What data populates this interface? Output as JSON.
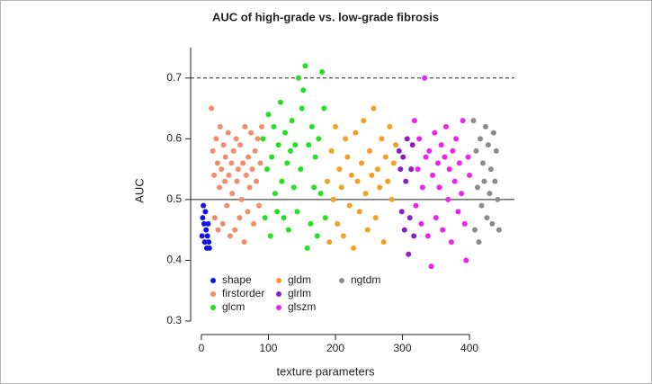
{
  "chart_data": {
    "type": "scatter",
    "title": "AUC of high-grade vs. low-grade fibrosis",
    "xlabel": "texture parameters",
    "ylabel": "AUC",
    "xlim": [
      -16,
      467
    ],
    "ylim": [
      0.3,
      0.75
    ],
    "xticks": [
      0,
      100,
      200,
      300,
      400
    ],
    "yticks": [
      0.3,
      0.4,
      0.5,
      0.6,
      0.7
    ],
    "reference_lines": [
      {
        "value": 0.5,
        "style": "solid"
      },
      {
        "value": 0.7,
        "style": "dashed"
      }
    ],
    "legend": "bottom-left",
    "series": [
      {
        "name": "shape",
        "color": "#1414e6",
        "x": [
          1,
          2,
          3,
          4,
          5,
          6,
          7,
          8,
          9,
          10,
          11,
          12
        ],
        "values": [
          0.44,
          0.47,
          0.49,
          0.46,
          0.43,
          0.48,
          0.45,
          0.42,
          0.44,
          0.46,
          0.43,
          0.42
        ]
      },
      {
        "name": "firstorder",
        "color": "#f28c6a",
        "x": [
          15,
          17,
          19,
          20,
          22,
          24,
          25,
          27,
          28,
          30,
          32,
          33,
          35,
          36,
          38,
          40,
          41,
          43,
          45,
          46,
          48,
          50,
          52,
          53,
          55,
          57,
          58,
          60,
          62,
          64,
          65,
          67,
          69,
          70,
          72,
          74,
          76,
          78,
          80,
          82,
          84,
          86,
          88,
          90
        ],
        "values": [
          0.65,
          0.58,
          0.54,
          0.47,
          0.6,
          0.56,
          0.45,
          0.52,
          0.62,
          0.55,
          0.46,
          0.59,
          0.53,
          0.57,
          0.49,
          0.61,
          0.54,
          0.44,
          0.56,
          0.51,
          0.58,
          0.45,
          0.6,
          0.53,
          0.55,
          0.47,
          0.59,
          0.5,
          0.56,
          0.43,
          0.62,
          0.54,
          0.48,
          0.57,
          0.52,
          0.61,
          0.55,
          0.46,
          0.58,
          0.53,
          0.6,
          0.49,
          0.56,
          0.62
        ]
      },
      {
        "name": "glcm",
        "color": "#22e022",
        "x": [
          92,
          95,
          98,
          100,
          103,
          105,
          108,
          110,
          113,
          115,
          118,
          120,
          123,
          125,
          128,
          130,
          133,
          135,
          138,
          140,
          143,
          145,
          148,
          150,
          152,
          155,
          158,
          160,
          163,
          165,
          168,
          170,
          173,
          175,
          178,
          180,
          183,
          185
        ],
        "values": [
          0.6,
          0.47,
          0.55,
          0.64,
          0.44,
          0.57,
          0.62,
          0.51,
          0.48,
          0.59,
          0.66,
          0.53,
          0.47,
          0.61,
          0.56,
          0.45,
          0.58,
          0.63,
          0.52,
          0.59,
          0.48,
          0.7,
          0.55,
          0.65,
          0.68,
          0.72,
          0.42,
          0.59,
          0.46,
          0.62,
          0.52,
          0.57,
          0.44,
          0.6,
          0.51,
          0.71,
          0.65,
          0.47
        ]
      },
      {
        "name": "gldm",
        "color": "#f2a01e",
        "x": [
          188,
          191,
          194,
          197,
          200,
          203,
          206,
          209,
          212,
          215,
          218,
          221,
          224,
          227,
          230,
          233,
          236,
          239,
          242,
          245,
          248,
          251,
          254,
          257,
          260,
          263,
          266,
          269,
          272,
          275,
          278,
          281,
          284,
          287,
          290
        ],
        "values": [
          0.53,
          0.43,
          0.58,
          0.5,
          0.62,
          0.46,
          0.55,
          0.52,
          0.44,
          0.6,
          0.57,
          0.49,
          0.54,
          0.42,
          0.61,
          0.53,
          0.48,
          0.56,
          0.63,
          0.51,
          0.45,
          0.58,
          0.54,
          0.65,
          0.47,
          0.55,
          0.52,
          0.6,
          0.43,
          0.57,
          0.53,
          0.62,
          0.5,
          0.56,
          0.59
        ]
      },
      {
        "name": "glrlm",
        "color": "#8a1fc4",
        "x": [
          295,
          297,
          299,
          301,
          303,
          305,
          307,
          309,
          311,
          313,
          315,
          317
        ],
        "values": [
          0.58,
          0.55,
          0.48,
          0.57,
          0.45,
          0.53,
          0.6,
          0.41,
          0.47,
          0.55,
          0.59,
          0.44
        ]
      },
      {
        "name": "glszm",
        "color": "#ee22ee",
        "x": [
          318,
          320,
          323,
          325,
          328,
          330,
          333,
          335,
          338,
          340,
          343,
          345,
          348,
          350,
          353,
          355,
          358,
          360,
          363,
          365,
          368,
          370,
          373,
          375,
          378,
          380,
          383,
          385,
          388,
          390,
          393,
          395,
          398,
          400
        ],
        "values": [
          0.63,
          0.49,
          0.55,
          0.6,
          0.46,
          0.52,
          0.7,
          0.57,
          0.44,
          0.58,
          0.39,
          0.54,
          0.61,
          0.47,
          0.56,
          0.52,
          0.59,
          0.45,
          0.57,
          0.62,
          0.5,
          0.55,
          0.43,
          0.58,
          0.53,
          0.6,
          0.48,
          0.56,
          0.51,
          0.63,
          0.46,
          0.4,
          0.57,
          0.54
        ]
      },
      {
        "name": "ngtdm",
        "color": "#8c8c8c",
        "x": [
          406,
          408,
          410,
          412,
          414,
          416,
          418,
          420,
          422,
          424,
          426,
          428,
          430,
          432,
          434,
          436,
          438,
          440,
          442,
          444
        ],
        "values": [
          0.63,
          0.45,
          0.58,
          0.52,
          0.43,
          0.6,
          0.49,
          0.56,
          0.53,
          0.62,
          0.47,
          0.59,
          0.51,
          0.55,
          0.46,
          0.61,
          0.53,
          0.58,
          0.5,
          0.45
        ]
      }
    ]
  }
}
